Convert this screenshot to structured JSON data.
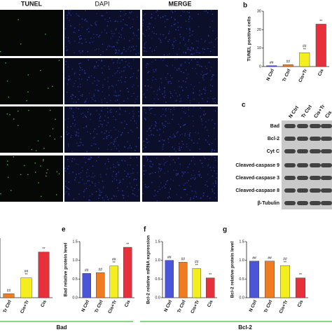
{
  "figure": {
    "image_headers": [
      "TUNEL",
      "DAPI",
      "MERGE"
    ],
    "blot": {
      "panel": "c",
      "lanes": [
        "N Ctrl",
        "Tr Ctrl",
        "Cis+Tr",
        "Cis"
      ],
      "proteins": [
        "Bad",
        "Bcl-2",
        "Cyt C",
        "Cleaved-caspase 9",
        "Cleaved-caspase 3",
        "Cleaved-caspase 8",
        "β-Tubulin"
      ]
    },
    "group_labels": [
      "Bad",
      "Bcl-2"
    ]
  },
  "chart_data": [
    {
      "type": "bar",
      "categories": [
        "Tr Ctrl",
        "Cis+Tr",
        "Cis"
      ],
      "values": [
        0.1,
        0.5,
        1.15
      ],
      "colors": [
        "#f07c22",
        "#f5ee1e",
        "#e8303a"
      ],
      "ylim": [
        0,
        1.5
      ],
      "annotations": [
        [
          "##"
        ],
        [
          "##",
          "**"
        ],
        [
          "**"
        ]
      ]
    },
    {
      "type": "bar",
      "panel": "b",
      "y_label": "TUNEL positive cells",
      "categories": [
        "N Ctrl",
        "Tr Ctrl",
        "Cis+Tr",
        "Cis"
      ],
      "values": [
        0.5,
        1,
        7.5,
        23
      ],
      "colors": [
        "#4a55d8",
        "#f07c22",
        "#f5ee1e",
        "#e8303a"
      ],
      "ylim": [
        0,
        30
      ],
      "yticks": [
        0,
        10,
        20,
        30
      ],
      "annotations": [
        [
          "##"
        ],
        [
          "##"
        ],
        [
          "##",
          "**"
        ],
        [
          "**"
        ]
      ]
    },
    {
      "type": "bar",
      "panel": "e",
      "y_label": "Bad relative protein level",
      "categories": [
        "N Ctrl",
        "Tr Ctrl",
        "Cis+Tr",
        "Cis"
      ],
      "values": [
        0.65,
        0.67,
        0.85,
        1.35
      ],
      "colors": [
        "#4a55d8",
        "#f07c22",
        "#f5ee1e",
        "#e8303a"
      ],
      "ylim": [
        0,
        1.5
      ],
      "yticks": [
        {
          "value": 0,
          "label": "0.0"
        },
        0.5,
        {
          "value": 1,
          "label": "1.0"
        },
        1.5
      ],
      "annotations": [
        [
          "##"
        ],
        [
          "##"
        ],
        [
          "##",
          "**"
        ],
        [
          "**"
        ]
      ]
    },
    {
      "type": "bar",
      "panel": "f",
      "y_label": "Bcl-2 relative mRNA expression",
      "categories": [
        "N Ctrl",
        "Tr Ctrl",
        "Cis+Tr",
        "Cis"
      ],
      "values": [
        1.0,
        0.95,
        0.78,
        0.53
      ],
      "colors": [
        "#4a55d8",
        "#f07c22",
        "#f5ee1e",
        "#e8303a"
      ],
      "ylim": [
        0,
        1.5
      ],
      "yticks": [
        {
          "value": 0,
          "label": "0.0"
        },
        0.5,
        {
          "value": 1,
          "label": "1.0"
        },
        1.5
      ],
      "annotations": [
        [
          "##"
        ],
        [
          "##"
        ],
        [
          "##",
          "**"
        ],
        [
          "**"
        ]
      ]
    },
    {
      "type": "bar",
      "panel": "g",
      "y_label": "Bcl-2 relative protein level",
      "categories": [
        "N Ctrl",
        "Tr Ctrl",
        "Cis+Tr",
        "Cis"
      ],
      "values": [
        0.98,
        0.98,
        0.86,
        0.53
      ],
      "colors": [
        "#4a55d8",
        "#f07c22",
        "#f5ee1e",
        "#e8303a"
      ],
      "ylim": [
        0,
        1.5
      ],
      "yticks": [
        {
          "value": 0,
          "label": "0.0"
        },
        0.5,
        {
          "value": 1,
          "label": "1.0"
        },
        1.5
      ],
      "annotations": [
        [
          "##"
        ],
        [
          "##"
        ],
        [
          "##",
          "**"
        ],
        [
          "**"
        ]
      ]
    }
  ]
}
